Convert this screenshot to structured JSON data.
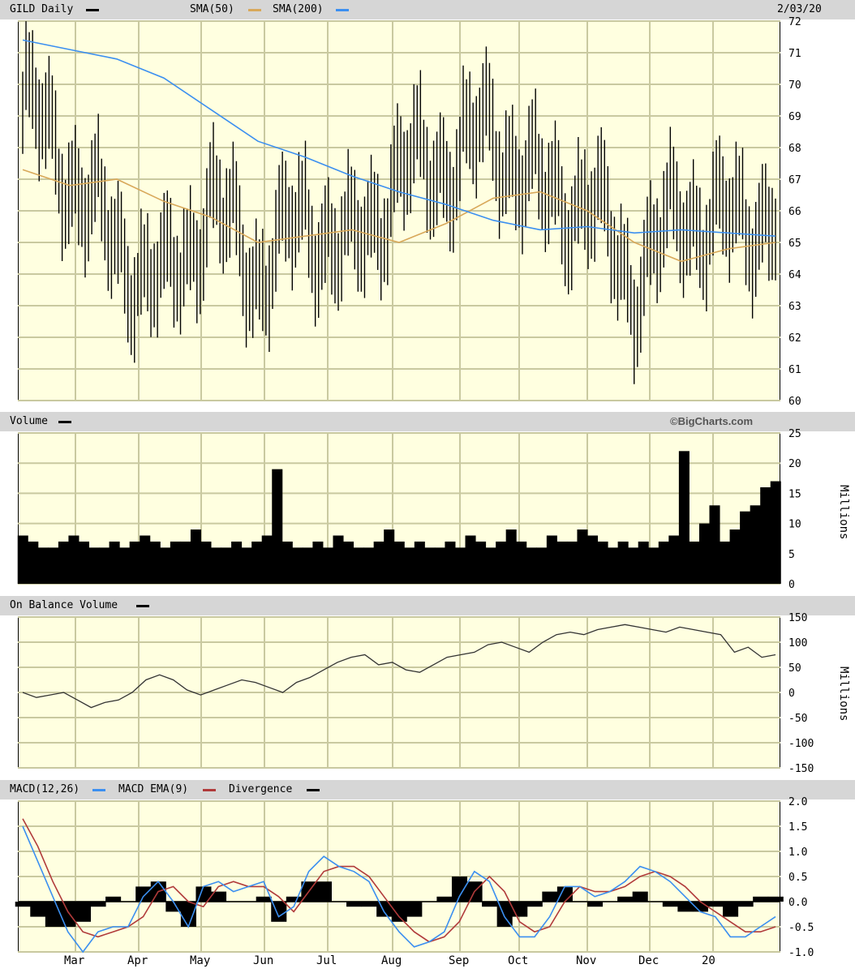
{
  "header": {
    "symbol_label": "GILD Daily",
    "sma50_label": "SMA(50)",
    "sma200_label": "SMA(200)",
    "date": "2/03/20"
  },
  "volume_header": {
    "label": "Volume",
    "credit": "©BigCharts.com"
  },
  "obv_header": {
    "label": "On Balance Volume"
  },
  "macd_header": {
    "macd_label": "MACD(12,26)",
    "ema_label": "MACD EMA(9)",
    "div_label": "Divergence"
  },
  "colors": {
    "price": "#000000",
    "sma50": "#d8a85a",
    "sma200": "#3b8ff0",
    "macd": "#3b8ff0",
    "ema": "#b03a3a",
    "panel": "#ffffe0",
    "bar": "#d6d6d6"
  },
  "chart_data": [
    {
      "type": "ohlc",
      "title": "GILD Daily",
      "y_ticks": [
        "72",
        "71",
        "70",
        "69",
        "68",
        "67",
        "66",
        "65",
        "64",
        "63",
        "62",
        "61",
        "60"
      ],
      "ylim": [
        60,
        72
      ],
      "x_labels": [
        "Mar",
        "Apr",
        "May",
        "Jun",
        "Jul",
        "Aug",
        "Sep",
        "Oct",
        "Nov",
        "Dec",
        "20"
      ],
      "series": [
        {
          "name": "SMA(50)",
          "x": [
            0,
            15,
            30,
            45,
            60,
            75,
            90,
            105,
            120,
            135,
            150,
            165,
            180,
            195,
            210,
            225,
            240
          ],
          "values": [
            67.3,
            66.8,
            67.0,
            66.3,
            65.8,
            65.0,
            65.2,
            65.4,
            65.0,
            65.6,
            66.4,
            66.6,
            66.0,
            65.0,
            64.4,
            64.8,
            65.0
          ]
        },
        {
          "name": "SMA(200)",
          "x": [
            0,
            15,
            30,
            45,
            60,
            75,
            90,
            105,
            120,
            135,
            150,
            165,
            180,
            195,
            210,
            225,
            240
          ],
          "values": [
            71.4,
            71.1,
            70.8,
            70.2,
            69.2,
            68.2,
            67.7,
            67.1,
            66.6,
            66.2,
            65.7,
            65.4,
            65.5,
            65.3,
            65.4,
            65.3,
            65.2
          ]
        },
        {
          "name": "GILD Daily",
          "x": [
            0,
            15,
            30,
            45,
            60,
            75,
            90,
            105,
            120,
            135,
            150,
            165,
            180,
            195,
            210,
            225,
            240
          ],
          "values": [
            69.5,
            67.2,
            64.8,
            63.5,
            66.2,
            64.0,
            65.8,
            64.6,
            67.2,
            67.5,
            68.5,
            66.5,
            66.3,
            63.7,
            66.0,
            65.5,
            66.0
          ]
        }
      ]
    },
    {
      "type": "bar",
      "title": "Volume",
      "unit": "Millions",
      "y_ticks": [
        "25",
        "20",
        "15",
        "10",
        "5",
        "0"
      ],
      "ylim": [
        0,
        25
      ],
      "series": [
        {
          "name": "Volume",
          "values": [
            8,
            7,
            6,
            6,
            7,
            8,
            7,
            6,
            6,
            7,
            6,
            7,
            8,
            7,
            6,
            7,
            7,
            9,
            7,
            6,
            6,
            7,
            6,
            7,
            8,
            19,
            7,
            6,
            6,
            7,
            6,
            8,
            7,
            6,
            6,
            7,
            9,
            7,
            6,
            7,
            6,
            6,
            7,
            6,
            8,
            7,
            6,
            7,
            9,
            7,
            6,
            6,
            8,
            7,
            7,
            9,
            8,
            7,
            6,
            7,
            6,
            7,
            6,
            7,
            8,
            22,
            7,
            10,
            13,
            7,
            9,
            12,
            13,
            16,
            17
          ]
        }
      ]
    },
    {
      "type": "line",
      "title": "On Balance Volume",
      "unit": "Millions",
      "y_ticks": [
        "150",
        "100",
        "50",
        "0",
        "-50",
        "-100",
        "-150"
      ],
      "ylim": [
        -150,
        150
      ],
      "series": [
        {
          "name": "On Balance Volume",
          "values": [
            0,
            -10,
            -5,
            0,
            -15,
            -30,
            -20,
            -15,
            0,
            25,
            35,
            25,
            5,
            -5,
            5,
            15,
            25,
            20,
            10,
            0,
            20,
            30,
            45,
            60,
            70,
            75,
            55,
            60,
            45,
            40,
            55,
            70,
            75,
            80,
            95,
            100,
            90,
            80,
            100,
            115,
            120,
            115,
            125,
            130,
            135,
            130,
            125,
            120,
            130,
            125,
            120,
            115,
            80,
            90,
            70,
            75
          ]
        }
      ]
    },
    {
      "type": "line",
      "title": "MACD(12,26)",
      "y_ticks": [
        "2.0",
        "1.5",
        "1.0",
        "0.5",
        "0.0",
        "-0.5",
        "-1.0"
      ],
      "ylim": [
        -1.0,
        2.0
      ],
      "series": [
        {
          "name": "MACD(12,26)",
          "values": [
            1.5,
            0.8,
            0.1,
            -0.6,
            -1.0,
            -0.6,
            -0.5,
            -0.5,
            0.1,
            0.4,
            0.0,
            -0.5,
            0.3,
            0.4,
            0.2,
            0.3,
            0.4,
            -0.3,
            -0.1,
            0.6,
            0.9,
            0.7,
            0.6,
            0.4,
            -0.2,
            -0.6,
            -0.9,
            -0.8,
            -0.6,
            0.1,
            0.6,
            0.4,
            -0.3,
            -0.7,
            -0.7,
            -0.3,
            0.3,
            0.3,
            0.1,
            0.2,
            0.4,
            0.7,
            0.6,
            0.4,
            0.1,
            -0.2,
            -0.3,
            -0.7,
            -0.7,
            -0.5,
            -0.3
          ]
        },
        {
          "name": "MACD EMA(9)",
          "values": [
            1.65,
            1.1,
            0.4,
            -0.2,
            -0.6,
            -0.7,
            -0.6,
            -0.5,
            -0.3,
            0.2,
            0.3,
            0.0,
            -0.1,
            0.3,
            0.4,
            0.3,
            0.3,
            0.1,
            -0.2,
            0.2,
            0.6,
            0.7,
            0.7,
            0.5,
            0.1,
            -0.3,
            -0.6,
            -0.8,
            -0.7,
            -0.4,
            0.2,
            0.5,
            0.2,
            -0.4,
            -0.6,
            -0.5,
            0.0,
            0.3,
            0.2,
            0.2,
            0.3,
            0.5,
            0.6,
            0.5,
            0.3,
            0.0,
            -0.2,
            -0.4,
            -0.6,
            -0.6,
            -0.5
          ]
        },
        {
          "name": "Divergence",
          "values": [
            -0.1,
            -0.3,
            -0.5,
            -0.5,
            -0.4,
            -0.1,
            0.1,
            0.0,
            0.3,
            0.4,
            -0.2,
            -0.5,
            0.3,
            0.2,
            0.0,
            0.0,
            0.1,
            -0.4,
            0.1,
            0.4,
            0.4,
            0.0,
            -0.1,
            -0.1,
            -0.3,
            -0.4,
            -0.3,
            0.0,
            0.1,
            0.5,
            0.4,
            -0.1,
            -0.5,
            -0.3,
            -0.1,
            0.2,
            0.3,
            0.0,
            -0.1,
            0.0,
            0.1,
            0.2,
            0.0,
            -0.1,
            -0.2,
            -0.2,
            -0.1,
            -0.3,
            -0.1,
            0.1,
            0.1
          ]
        }
      ]
    }
  ]
}
